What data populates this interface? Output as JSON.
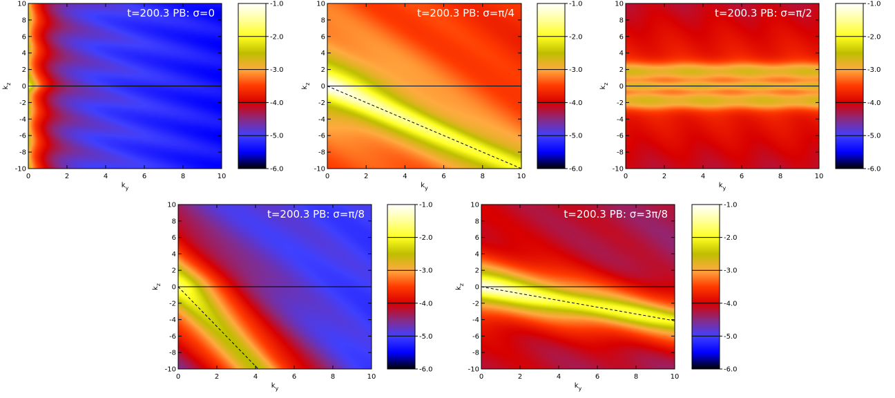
{
  "chart_data": [
    {
      "type": "heatmap",
      "title": "t=200.3 PB: σ=0",
      "xlabel": "k",
      "xlabel_sub": "y",
      "ylabel": "k",
      "ylabel_sub": "z",
      "xlim": [
        0,
        10
      ],
      "ylim": [
        -10,
        10
      ],
      "xticks": [
        "0",
        "2",
        "4",
        "6",
        "8",
        "10"
      ],
      "yticks": [
        "-10",
        "-8",
        "-6",
        "-4",
        "-2",
        "0",
        "2",
        "4",
        "6",
        "8",
        "10"
      ],
      "ridge_slope": null,
      "dashed_line": null,
      "colorbar": {
        "range": [
          -6.0,
          -1.0
        ],
        "ticks": [
          "-1.0",
          "-2.0",
          "-3.0",
          "-4.0",
          "-5.0",
          "-6.0"
        ]
      }
    },
    {
      "type": "heatmap",
      "title": "t=200.3 PB: σ=π/4",
      "xlabel": "k",
      "xlabel_sub": "y",
      "ylabel": "k",
      "ylabel_sub": "z",
      "xlim": [
        0,
        10
      ],
      "ylim": [
        -10,
        10
      ],
      "xticks": [
        "0",
        "2",
        "4",
        "6",
        "8",
        "10"
      ],
      "yticks": [
        "-10",
        "-8",
        "-6",
        "-4",
        "-2",
        "0",
        "2",
        "4",
        "6",
        "8",
        "10"
      ],
      "ridge_slope": -1.0,
      "dashed_line": {
        "x": [
          0,
          10
        ],
        "y": [
          0,
          -10
        ]
      },
      "colorbar": {
        "range": [
          -6.0,
          -1.0
        ],
        "ticks": [
          "-1.0",
          "-2.0",
          "-3.0",
          "-4.0",
          "-5.0",
          "-6.0"
        ]
      }
    },
    {
      "type": "heatmap",
      "title": "t=200.3 PB: σ=π/2",
      "xlabel": "k",
      "xlabel_sub": "y",
      "ylabel": "k",
      "ylabel_sub": "z",
      "xlim": [
        0,
        10
      ],
      "ylim": [
        -10,
        10
      ],
      "xticks": [
        "0",
        "2",
        "4",
        "6",
        "8",
        "10"
      ],
      "yticks": [
        "-10",
        "-8",
        "-6",
        "-4",
        "-2",
        "0",
        "2",
        "4",
        "6",
        "8",
        "10"
      ],
      "ridge_slope": 0,
      "dashed_line": null,
      "colorbar": {
        "range": [
          -6.0,
          -1.0
        ],
        "ticks": [
          "-1.0",
          "-2.0",
          "-3.0",
          "-4.0",
          "-5.0",
          "-6.0"
        ]
      }
    },
    {
      "type": "heatmap",
      "title": "t=200.3 PB: σ=π/8",
      "xlabel": "k",
      "xlabel_sub": "y",
      "ylabel": "k",
      "ylabel_sub": "z",
      "xlim": [
        0,
        10
      ],
      "ylim": [
        -10,
        10
      ],
      "xticks": [
        "0",
        "2",
        "4",
        "6",
        "8",
        "10"
      ],
      "yticks": [
        "-10",
        "-8",
        "-6",
        "-4",
        "-2",
        "0",
        "2",
        "4",
        "6",
        "8",
        "10"
      ],
      "ridge_slope": -2.414,
      "dashed_line": {
        "x": [
          0,
          4.14
        ],
        "y": [
          0,
          -10
        ]
      },
      "colorbar": {
        "range": [
          -6.0,
          -1.0
        ],
        "ticks": [
          "-1.0",
          "-2.0",
          "-3.0",
          "-4.0",
          "-5.0",
          "-6.0"
        ]
      }
    },
    {
      "type": "heatmap",
      "title": "t=200.3 PB: σ=3π/8",
      "xlabel": "k",
      "xlabel_sub": "y",
      "ylabel": "k",
      "ylabel_sub": "z",
      "xlim": [
        0,
        10
      ],
      "ylim": [
        -10,
        10
      ],
      "xticks": [
        "0",
        "2",
        "4",
        "6",
        "8",
        "10"
      ],
      "yticks": [
        "-10",
        "-8",
        "-6",
        "-4",
        "-2",
        "0",
        "2",
        "4",
        "6",
        "8",
        "10"
      ],
      "ridge_slope": -0.414,
      "dashed_line": {
        "x": [
          0,
          10
        ],
        "y": [
          0,
          -4.14
        ]
      },
      "colorbar": {
        "range": [
          -6.0,
          -1.0
        ],
        "ticks": [
          "-1.0",
          "-2.0",
          "-3.0",
          "-4.0",
          "-5.0",
          "-6.0"
        ]
      }
    }
  ]
}
